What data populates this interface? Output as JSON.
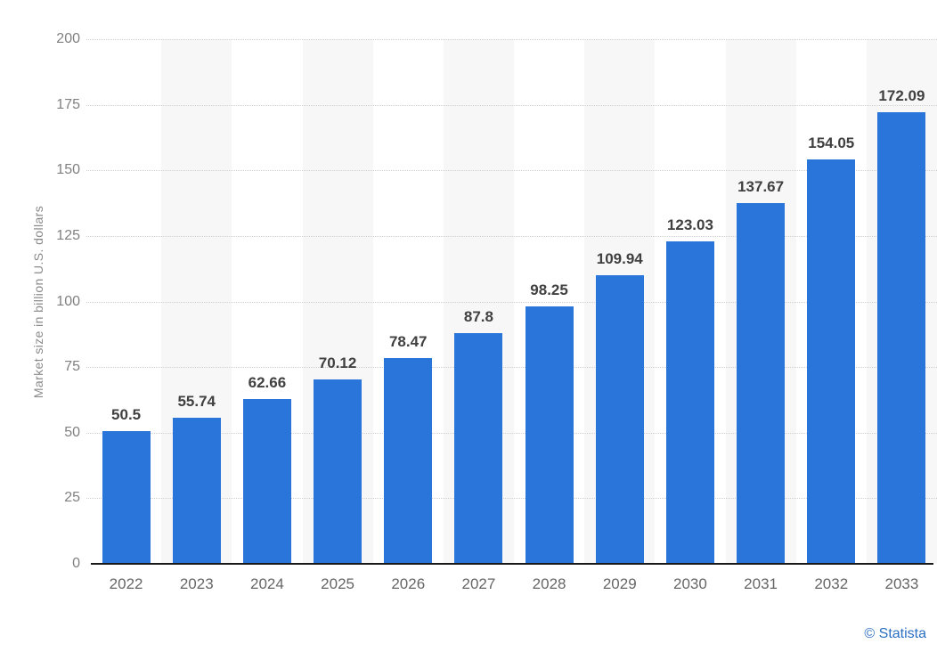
{
  "chart_data": {
    "type": "bar",
    "title": "",
    "xlabel": "",
    "ylabel": "Market size in billion U.S. dollars",
    "categories": [
      "2022",
      "2023",
      "2024",
      "2025",
      "2026",
      "2027",
      "2028",
      "2029",
      "2030",
      "2031",
      "2032",
      "2033"
    ],
    "values": [
      50.5,
      55.74,
      62.66,
      70.12,
      78.47,
      87.8,
      98.25,
      109.94,
      123.03,
      137.67,
      154.05,
      172.09
    ],
    "value_labels": [
      "50.5",
      "55.74",
      "62.66",
      "70.12",
      "78.47",
      "87.8",
      "98.25",
      "109.94",
      "123.03",
      "137.67",
      "154.05",
      "172.09"
    ],
    "ylim": [
      0,
      200
    ],
    "yticks": [
      0,
      25,
      50,
      75,
      100,
      125,
      150,
      175,
      200
    ],
    "ytick_labels": [
      "0",
      "25",
      "50",
      "75",
      "100",
      "125",
      "150",
      "175",
      "200"
    ],
    "grid": true,
    "gridline_style": "dotted",
    "legend": false,
    "alternating_column_bands": true,
    "colors": {
      "bar": "#2a75d9",
      "band": "#f7f7f7",
      "gridline": "#cfcfcf",
      "axis_line": "#1a1a1a",
      "y_tick_label": "#808080",
      "x_tick_label": "#666666",
      "data_label": "#404040",
      "axis_title": "#8a8a8a"
    }
  },
  "attribution": {
    "label": "© Statista",
    "color": "#2a6fc2"
  }
}
